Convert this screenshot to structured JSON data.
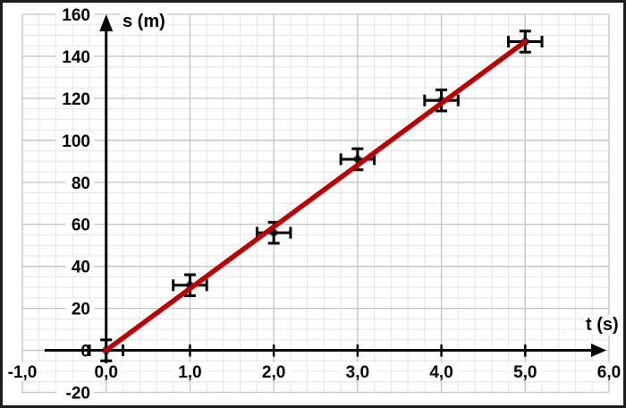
{
  "chart_data": {
    "type": "scatter",
    "title": "",
    "xlabel": "t (s)",
    "ylabel": "s (m)",
    "x_range": [
      -1.0,
      6.0
    ],
    "y_range": [
      -20,
      160
    ],
    "x_major_step": 1.0,
    "x_minor_step": 0.2,
    "y_major_step": 20,
    "y_minor_step": 5,
    "grid": "on",
    "legend": "none",
    "x_ticks": [
      {
        "value": -1.0,
        "label": "-1,0",
        "tick": false
      },
      {
        "value": 0.0,
        "label": "0,0",
        "tick": true
      },
      {
        "value": 1.0,
        "label": "1,0",
        "tick": true
      },
      {
        "value": 2.0,
        "label": "2,0",
        "tick": true
      },
      {
        "value": 3.0,
        "label": "3,0",
        "tick": true
      },
      {
        "value": 4.0,
        "label": "4,0",
        "tick": true
      },
      {
        "value": 5.0,
        "label": "5,0",
        "tick": true
      },
      {
        "value": 6.0,
        "label": "6,0",
        "tick": false
      }
    ],
    "y_ticks": [
      {
        "value": -20,
        "label": "-20"
      },
      {
        "value": 0,
        "label": "0"
      },
      {
        "value": 20,
        "label": "20"
      },
      {
        "value": 40,
        "label": "40"
      },
      {
        "value": 60,
        "label": "60"
      },
      {
        "value": 80,
        "label": "80"
      },
      {
        "value": 100,
        "label": "100"
      },
      {
        "value": 120,
        "label": "120"
      },
      {
        "value": 140,
        "label": "140"
      },
      {
        "value": 160,
        "label": "160"
      }
    ],
    "points": [
      {
        "t": 0.0,
        "s": 0
      },
      {
        "t": 1.0,
        "s": 31
      },
      {
        "t": 2.0,
        "s": 56
      },
      {
        "t": 3.0,
        "s": 91
      },
      {
        "t": 4.0,
        "s": 119
      },
      {
        "t": 5.0,
        "s": 147
      }
    ],
    "x_error": 0.2,
    "y_error": 5,
    "trendline": {
      "t1": 0.0,
      "s1": 0,
      "t2": 5.0,
      "s2": 147
    },
    "colors": {
      "trendline": "#C00000",
      "marker": "#2F5D9E",
      "error_bar": "#000000",
      "axis": "#000000",
      "grid_minor": "#E4E4E4",
      "grid_major": "#C3C3C3",
      "text": "#000000",
      "label_bg": "#FFFFFF",
      "frame_border": "#1E1E1E",
      "background": "#FFFFFF"
    }
  }
}
